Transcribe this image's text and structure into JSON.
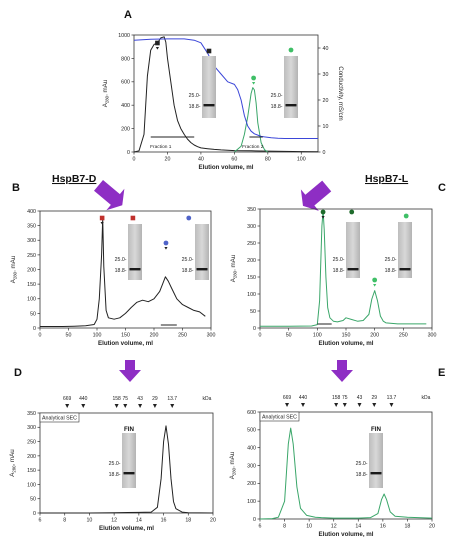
{
  "colors": {
    "black": "#222222",
    "blue": "#3b46d8",
    "green": "#3aa669",
    "purple": "#8e2ec4",
    "red_marker": "#c0302c",
    "blue_marker": "#4f63c9",
    "dkgreen_marker": "#1f6b2c",
    "green_marker": "#3fbf67"
  },
  "panel_labels": [
    "A",
    "B",
    "C",
    "D",
    "E"
  ],
  "section_labels": {
    "left": "HspB7-D",
    "right": "HspB7-L"
  },
  "gel_labels": {
    "upper": "25.0-",
    "lower": "18.8-",
    "fin": "FIN"
  },
  "chart_data": [
    {
      "id": "A",
      "type": "line",
      "ylabel": "A280, mAu",
      "ylabel_main": "A",
      "ylabel_sub": "280",
      "ylabel_unit": ", mAu",
      "y2label": "Conductivity, mS/cm",
      "xlabel": "Elution volume, ml",
      "xlim": [
        0,
        110
      ],
      "ylim": [
        0,
        1000
      ],
      "y2lim": [
        0,
        45
      ],
      "xticks": [
        "0",
        "20",
        "40",
        "60",
        "80",
        "100"
      ],
      "yticks": [
        "0",
        "200",
        "400",
        "600",
        "800",
        "1000"
      ],
      "y2ticks": [
        "0",
        "10",
        "20",
        "30",
        "40"
      ],
      "annotations": [
        "Fraction 1",
        "Fraction 2"
      ],
      "series": [
        {
          "color": "black",
          "x": [
            0,
            3,
            6,
            8,
            10,
            12,
            14,
            16,
            18,
            19,
            20,
            22,
            24,
            26,
            28,
            30,
            32,
            34,
            36,
            38,
            40,
            44,
            48,
            52,
            56,
            60,
            70,
            80,
            90,
            100,
            110
          ],
          "y": [
            0,
            10,
            150,
            650,
            870,
            920,
            930,
            975,
            985,
            940,
            800,
            600,
            400,
            270,
            200,
            150,
            110,
            80,
            60,
            45,
            35,
            28,
            22,
            18,
            15,
            12,
            10,
            8,
            5,
            3,
            2
          ]
        },
        {
          "color": "green",
          "x": [
            60,
            64,
            66,
            68,
            70,
            71,
            72,
            73,
            74,
            76,
            78,
            80
          ],
          "y": [
            0,
            50,
            150,
            300,
            500,
            550,
            530,
            420,
            250,
            80,
            20,
            0
          ]
        },
        {
          "color": "blue",
          "x": [
            0,
            10,
            20,
            30,
            36,
            40,
            44,
            48,
            52,
            56,
            60,
            62,
            64,
            66,
            68,
            70,
            72,
            74,
            76,
            78,
            82,
            86,
            90,
            100,
            110
          ],
          "y2": [
            43,
            43.4,
            43.5,
            43.5,
            43,
            42,
            38,
            33,
            30,
            27,
            26,
            24,
            20,
            14,
            10,
            8,
            7,
            6.5,
            6,
            5.8,
            5.5,
            5.3,
            5.2,
            5.2,
            5.2
          ]
        }
      ]
    },
    {
      "id": "B",
      "type": "line",
      "ylabel": "A280, mAu",
      "ylabel_main": "A",
      "ylabel_sub": "280",
      "ylabel_unit": ", mAu",
      "xlabel": "Elution volume, ml",
      "xlim": [
        0,
        300
      ],
      "ylim": [
        0,
        400
      ],
      "xticks": [
        "0",
        "50",
        "100",
        "150",
        "200",
        "250",
        "300"
      ],
      "yticks": [
        "0",
        "50",
        "100",
        "150",
        "200",
        "250",
        "300",
        "350",
        "400"
      ],
      "series": [
        {
          "color": "black",
          "x": [
            0,
            20,
            40,
            60,
            80,
            95,
            100,
            104,
            108,
            110,
            112,
            116,
            120,
            130,
            140,
            150,
            160,
            170,
            180,
            190,
            200,
            210,
            215,
            220,
            225,
            230,
            235,
            240,
            250,
            260,
            270,
            280,
            290
          ],
          "y": [
            5,
            5,
            5,
            6,
            8,
            12,
            30,
            100,
            250,
            375,
            210,
            60,
            35,
            30,
            35,
            50,
            70,
            88,
            95,
            90,
            100,
            125,
            150,
            175,
            160,
            140,
            120,
            100,
            80,
            70,
            60,
            55,
            40
          ]
        }
      ]
    },
    {
      "id": "C",
      "type": "line",
      "ylabel": "A280, mAu",
      "ylabel_main": "A",
      "ylabel_sub": "280",
      "ylabel_unit": ", mAu",
      "xlabel": "Elution volume, ml",
      "xlim": [
        0,
        300
      ],
      "ylim": [
        0,
        350
      ],
      "xticks": [
        "0",
        "50",
        "100",
        "150",
        "200",
        "250",
        "300"
      ],
      "yticks": [
        "0",
        "50",
        "100",
        "150",
        "200",
        "250",
        "300",
        "350"
      ],
      "series": [
        {
          "color": "green",
          "x": [
            0,
            50,
            90,
            100,
            104,
            108,
            110,
            112,
            115,
            118,
            122,
            128,
            135,
            145,
            150,
            160,
            170,
            180,
            190,
            195,
            200,
            205,
            210,
            215,
            220,
            240,
            260,
            290
          ],
          "y": [
            5,
            5,
            6,
            10,
            80,
            300,
            345,
            290,
            150,
            60,
            30,
            20,
            18,
            22,
            30,
            25,
            20,
            22,
            40,
            85,
            110,
            80,
            35,
            20,
            15,
            12,
            12,
            12
          ]
        }
      ]
    },
    {
      "id": "D",
      "type": "line",
      "title": "Analytical SEC",
      "ylabel": "A280, mAu",
      "ylabel_main": "A",
      "ylabel_sub": "280",
      "ylabel_unit": ", mAu",
      "xlabel": "Elution volume, ml",
      "xlim": [
        6,
        20
      ],
      "ylim": [
        0,
        350
      ],
      "xticks": [
        "6",
        "8",
        "10",
        "12",
        "14",
        "16",
        "18",
        "20"
      ],
      "yticks": [
        "0",
        "50",
        "100",
        "150",
        "200",
        "250",
        "300",
        "350"
      ],
      "markers": {
        "unit": "kDa",
        "labels": [
          "669",
          "440",
          "158",
          "75",
          "43",
          "29",
          "13.7"
        ],
        "x": [
          8.2,
          9.5,
          12.2,
          12.9,
          14.1,
          15.3,
          16.7
        ]
      },
      "series": [
        {
          "color": "black",
          "x": [
            6,
            8,
            10,
            12,
            14,
            15,
            15.5,
            15.8,
            16,
            16.2,
            16.4,
            16.6,
            16.8,
            17,
            17.5,
            18,
            20
          ],
          "y": [
            0,
            0,
            0,
            1,
            2,
            3,
            20,
            120,
            250,
            305,
            240,
            120,
            40,
            15,
            3,
            1,
            0
          ]
        }
      ]
    },
    {
      "id": "E",
      "type": "line",
      "title": "Analytical SEC",
      "ylabel": "A280, mAu",
      "ylabel_main": "A",
      "ylabel_sub": "280",
      "ylabel_unit": ", mAu",
      "xlabel": "Elution volume, ml",
      "xlim": [
        6,
        20
      ],
      "ylim": [
        0,
        600
      ],
      "xticks": [
        "6",
        "8",
        "10",
        "12",
        "14",
        "16",
        "18",
        "20"
      ],
      "yticks": [
        "0",
        "100",
        "200",
        "300",
        "400",
        "500",
        "600"
      ],
      "markers": {
        "unit": "kDa",
        "labels": [
          "669",
          "440",
          "158",
          "75",
          "43",
          "29",
          "13.7"
        ],
        "x": [
          8.2,
          9.5,
          12.2,
          12.9,
          14.1,
          15.3,
          16.7
        ]
      },
      "series": [
        {
          "color": "green",
          "x": [
            6,
            7,
            7.5,
            8,
            8.3,
            8.5,
            8.7,
            9,
            9.3,
            9.8,
            10.5,
            11,
            12,
            13,
            14,
            15,
            15.6,
            15.9,
            16.1,
            16.3,
            16.6,
            17,
            18,
            20
          ],
          "y": [
            0,
            2,
            10,
            100,
            420,
            510,
            420,
            180,
            60,
            20,
            10,
            8,
            5,
            5,
            5,
            8,
            30,
            110,
            140,
            110,
            40,
            15,
            10,
            5
          ]
        }
      ]
    }
  ]
}
